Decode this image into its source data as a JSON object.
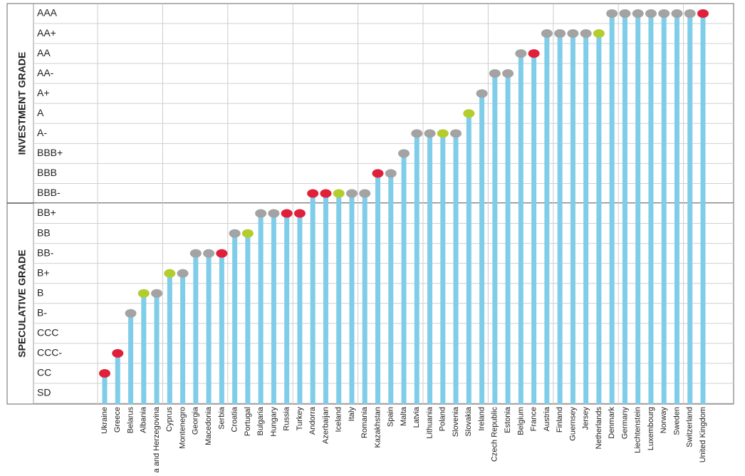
{
  "chart_data": {
    "type": "lollipop",
    "y_group_labels": [
      "INVESTMENT GRADE",
      "SPECULATIVE GRADE"
    ],
    "categories": [
      "Ukraine",
      "Greece",
      "Belarus",
      "Albania",
      "Bosnia and Herzegovina",
      "Cyprus",
      "Montenegro",
      "Georgia",
      "Macedonia",
      "Serbia",
      "Croatia",
      "Portugal",
      "Bulgaria",
      "Hungary",
      "Russia",
      "Turkey",
      "Andorra",
      "Azerbaijan",
      "Iceland",
      "Italy",
      "Romania",
      "Kazakhstan",
      "Spain",
      "Malta",
      "Latvia",
      "Lithuania",
      "Poland",
      "Slovenia",
      "Slovakia",
      "Ireland",
      "Czech Republic",
      "Estonia",
      "Belgium",
      "France",
      "Austria",
      "Finland",
      "Guernsey",
      "Jersey",
      "Netherlands",
      "Denmark",
      "Germany",
      "Liechtenstein",
      "Luxembourg",
      "Norway",
      "Sweden",
      "Switzerland",
      "United Kingdom"
    ],
    "values": [
      1,
      2,
      4,
      5,
      5,
      6,
      6,
      7,
      7,
      7,
      8,
      8,
      9,
      9,
      9,
      9,
      10,
      10,
      10,
      10,
      10,
      11,
      11,
      12,
      13,
      13,
      13,
      13,
      14,
      15,
      16,
      16,
      17,
      17,
      18,
      18,
      18,
      18,
      18,
      19,
      19,
      19,
      19,
      19,
      19,
      19,
      19
    ],
    "dot_colors": [
      "#e0203a",
      "#e0203a",
      "#a3a3a3",
      "#b5cc2e",
      "#a3a3a3",
      "#b5cc2e",
      "#a3a3a3",
      "#a3a3a3",
      "#a3a3a3",
      "#e0203a",
      "#a3a3a3",
      "#b5cc2e",
      "#a3a3a3",
      "#a3a3a3",
      "#e0203a",
      "#e0203a",
      "#e0203a",
      "#e0203a",
      "#b5cc2e",
      "#a3a3a3",
      "#a3a3a3",
      "#e0203a",
      "#a3a3a3",
      "#a3a3a3",
      "#a3a3a3",
      "#a3a3a3",
      "#b5cc2e",
      "#a3a3a3",
      "#b5cc2e",
      "#a3a3a3",
      "#a3a3a3",
      "#a3a3a3",
      "#a3a3a3",
      "#e0203a",
      "#a3a3a3",
      "#a3a3a3",
      "#a3a3a3",
      "#a3a3a3",
      "#b5cc2e",
      "#a3a3a3",
      "#a3a3a3",
      "#a3a3a3",
      "#a3a3a3",
      "#a3a3a3",
      "#a3a3a3",
      "#a3a3a3",
      "#e0203a"
    ],
    "color": "#7fcde9",
    "ylim": [
      0,
      19
    ],
    "yticks": [
      {
        "value": 0,
        "label": "SD"
      },
      {
        "value": 1,
        "label": "CC"
      },
      {
        "value": 2,
        "label": "CCC-"
      },
      {
        "value": 3,
        "label": "CCC"
      },
      {
        "value": 4,
        "label": "B-"
      },
      {
        "value": 5,
        "label": "B"
      },
      {
        "value": 6,
        "label": "B+"
      },
      {
        "value": 7,
        "label": "BB-"
      },
      {
        "value": 8,
        "label": "BB"
      },
      {
        "value": 9,
        "label": "BB+"
      },
      {
        "value": 10,
        "label": "BBB-"
      },
      {
        "value": 11,
        "label": "BBB"
      },
      {
        "value": 12,
        "label": "BBB+"
      },
      {
        "value": 13,
        "label": "A-"
      },
      {
        "value": 14,
        "label": "A"
      },
      {
        "value": 15,
        "label": "A+"
      },
      {
        "value": 16,
        "label": "AA-"
      },
      {
        "value": 17,
        "label": "AA"
      },
      {
        "value": 18,
        "label": "AA+"
      },
      {
        "value": 19,
        "label": "AAA"
      }
    ]
  }
}
